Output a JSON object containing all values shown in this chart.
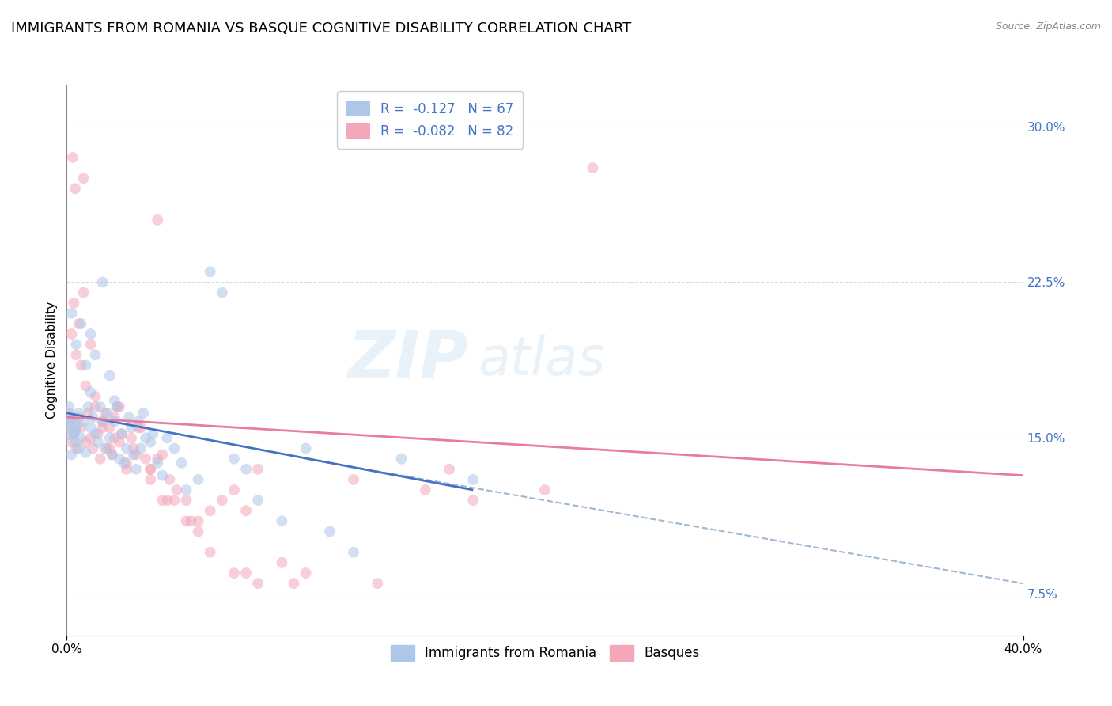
{
  "title": "IMMIGRANTS FROM ROMANIA VS BASQUE COGNITIVE DISABILITY CORRELATION CHART",
  "source": "Source: ZipAtlas.com",
  "ylabel": "Cognitive Disability",
  "xlim": [
    0.0,
    40.0
  ],
  "ylim": [
    5.5,
    32.0
  ],
  "yticks": [
    7.5,
    15.0,
    22.5,
    30.0
  ],
  "legend_entries": [
    {
      "label": "Immigrants from Romania",
      "R": -0.127,
      "N": 67,
      "color": "#aec6e8"
    },
    {
      "label": "Basques",
      "R": -0.082,
      "N": 82,
      "color": "#f4a7b9"
    }
  ],
  "background_color": "#ffffff",
  "grid_color": "#d8d8d8",
  "watermark": "ZIPatlas",
  "blue_scatter_x": [
    0.1,
    0.15,
    0.2,
    0.25,
    0.3,
    0.35,
    0.4,
    0.5,
    0.5,
    0.6,
    0.7,
    0.8,
    0.9,
    1.0,
    1.0,
    1.1,
    1.2,
    1.3,
    1.4,
    1.5,
    1.6,
    1.7,
    1.8,
    1.9,
    2.0,
    2.1,
    2.2,
    2.3,
    2.4,
    2.5,
    2.6,
    2.7,
    2.8,
    2.9,
    3.0,
    3.1,
    3.2,
    3.3,
    3.5,
    3.6,
    3.8,
    4.0,
    4.2,
    4.5,
    4.8,
    5.0,
    5.5,
    6.0,
    6.5,
    7.0,
    7.5,
    8.0,
    9.0,
    10.0,
    11.0,
    12.0,
    14.0,
    17.0,
    0.2,
    0.4,
    0.6,
    0.8,
    1.0,
    1.2,
    1.5,
    1.8,
    2.0
  ],
  "blue_scatter_y": [
    16.5,
    15.8,
    14.2,
    16.0,
    15.2,
    14.8,
    15.5,
    16.2,
    14.5,
    15.0,
    15.8,
    14.3,
    16.5,
    15.5,
    17.2,
    16.0,
    15.2,
    14.8,
    16.5,
    15.8,
    14.5,
    16.2,
    15.0,
    14.2,
    15.8,
    16.5,
    14.0,
    15.2,
    13.8,
    14.5,
    16.0,
    15.5,
    14.2,
    13.5,
    15.8,
    14.5,
    16.2,
    15.0,
    14.8,
    15.2,
    13.8,
    13.2,
    15.0,
    14.5,
    13.8,
    12.5,
    13.0,
    23.0,
    22.0,
    14.0,
    13.5,
    12.0,
    11.0,
    14.5,
    10.5,
    9.5,
    14.0,
    13.0,
    21.0,
    19.5,
    20.5,
    18.5,
    20.0,
    19.0,
    22.5,
    18.0,
    16.8
  ],
  "pink_scatter_x": [
    0.1,
    0.15,
    0.2,
    0.25,
    0.3,
    0.35,
    0.4,
    0.5,
    0.6,
    0.7,
    0.8,
    0.9,
    1.0,
    1.1,
    1.2,
    1.3,
    1.4,
    1.5,
    1.6,
    1.7,
    1.8,
    1.9,
    2.0,
    2.1,
    2.2,
    2.3,
    2.5,
    2.7,
    2.9,
    3.1,
    3.3,
    3.5,
    3.8,
    4.0,
    4.3,
    4.6,
    5.0,
    5.5,
    6.0,
    6.5,
    7.0,
    7.5,
    8.0,
    9.0,
    10.0,
    12.0,
    13.0,
    15.0,
    16.0,
    17.0,
    20.0,
    22.0,
    0.2,
    0.4,
    0.6,
    0.8,
    1.0,
    1.2,
    1.5,
    1.8,
    2.0,
    2.5,
    3.0,
    3.5,
    4.0,
    5.0,
    6.0,
    7.0,
    3.8,
    4.5,
    5.5,
    8.0,
    0.3,
    0.5,
    0.7,
    2.2,
    2.8,
    3.5,
    4.2,
    5.2,
    7.5,
    9.5
  ],
  "pink_scatter_y": [
    16.2,
    15.5,
    14.8,
    28.5,
    15.2,
    27.0,
    14.5,
    16.0,
    15.5,
    27.5,
    14.8,
    16.2,
    15.0,
    14.5,
    16.5,
    15.2,
    14.0,
    15.8,
    16.2,
    14.5,
    15.5,
    14.2,
    15.0,
    16.5,
    14.8,
    15.2,
    13.8,
    15.0,
    14.2,
    15.5,
    14.0,
    13.5,
    25.5,
    14.2,
    13.0,
    12.5,
    12.0,
    11.0,
    11.5,
    12.0,
    12.5,
    11.5,
    13.5,
    9.0,
    8.5,
    13.0,
    8.0,
    12.5,
    13.5,
    12.0,
    12.5,
    28.0,
    20.0,
    19.0,
    18.5,
    17.5,
    19.5,
    17.0,
    15.5,
    14.5,
    16.0,
    13.5,
    15.5,
    13.0,
    12.0,
    11.0,
    9.5,
    8.5,
    14.0,
    12.0,
    10.5,
    8.0,
    21.5,
    20.5,
    22.0,
    16.5,
    14.5,
    13.5,
    12.0,
    11.0,
    8.5,
    8.0
  ],
  "blue_line_x0": 0.0,
  "blue_line_y0": 16.2,
  "blue_line_x1": 17.0,
  "blue_line_y1": 12.5,
  "pink_line_x0": 0.0,
  "pink_line_y0": 16.0,
  "pink_line_x1": 40.0,
  "pink_line_y1": 13.2,
  "dash_line_x0": 10.0,
  "dash_line_y0": 14.0,
  "dash_line_x1": 40.0,
  "dash_line_y1": 8.0,
  "blue_line_color": "#4472c4",
  "pink_line_color": "#e87ca0",
  "dashed_line_color": "#a0b8d0",
  "scatter_alpha": 0.55,
  "scatter_size": 100,
  "large_dot_size": 500,
  "large_dot_x": 0.1,
  "large_dot_y": 15.5,
  "title_fontsize": 13,
  "axis_label_fontsize": 11,
  "tick_fontsize": 11,
  "legend_fontsize": 12,
  "tick_color": "#4472c4"
}
